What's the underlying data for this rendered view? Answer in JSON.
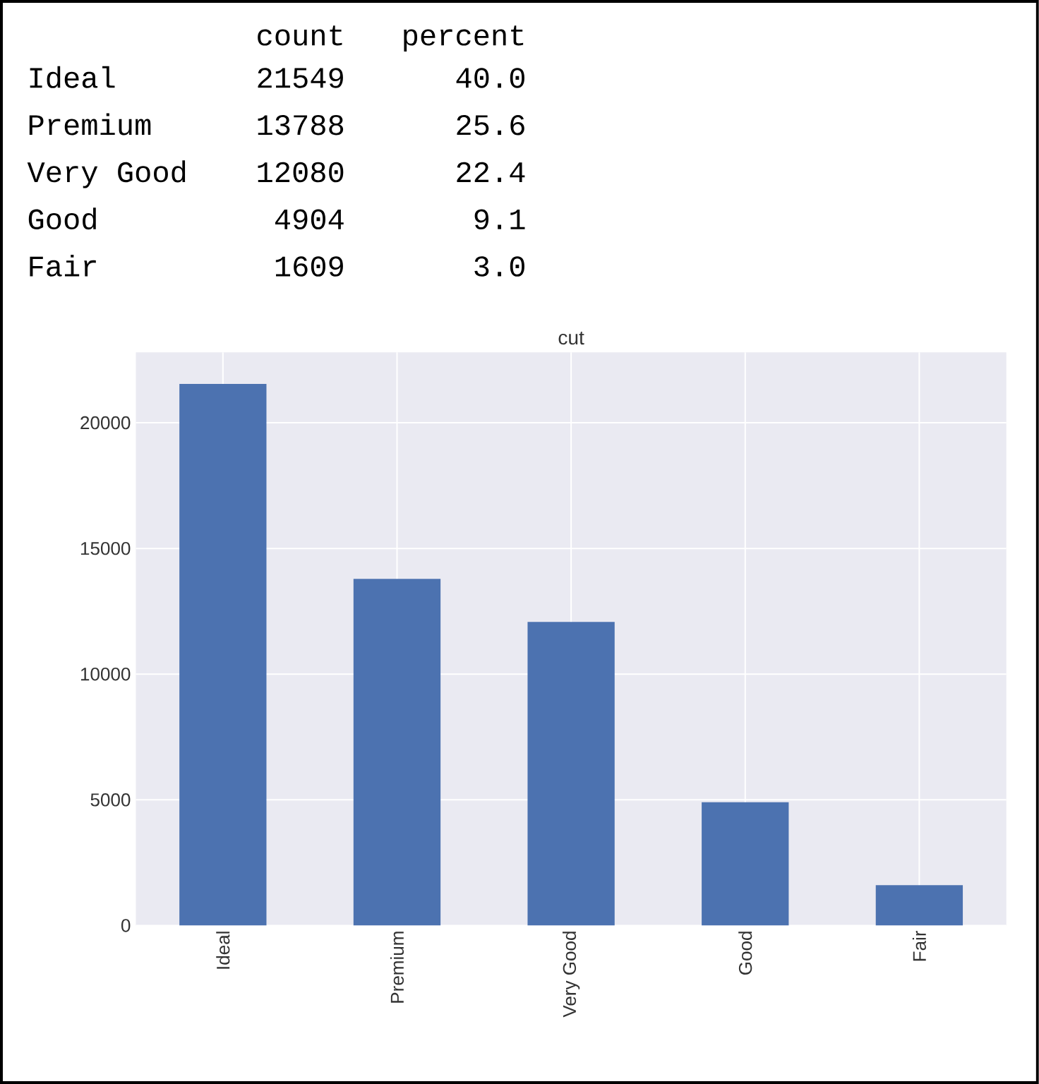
{
  "chart_data": {
    "type": "bar",
    "title": "cut",
    "categories": [
      "Ideal",
      "Premium",
      "Very Good",
      "Good",
      "Fair"
    ],
    "values": [
      21549,
      13788,
      12080,
      4904,
      1609
    ],
    "color": "#4c72b0",
    "ylim": [
      0,
      22800
    ],
    "yticks": [
      0,
      5000,
      10000,
      15000,
      20000
    ],
    "grid": true,
    "annotations": [
      "count",
      "percent",
      "21549",
      "40.0",
      "13788",
      "25.6",
      "12080",
      "22.4",
      "4904",
      "9.1",
      "1609",
      "3.0"
    ]
  }
}
